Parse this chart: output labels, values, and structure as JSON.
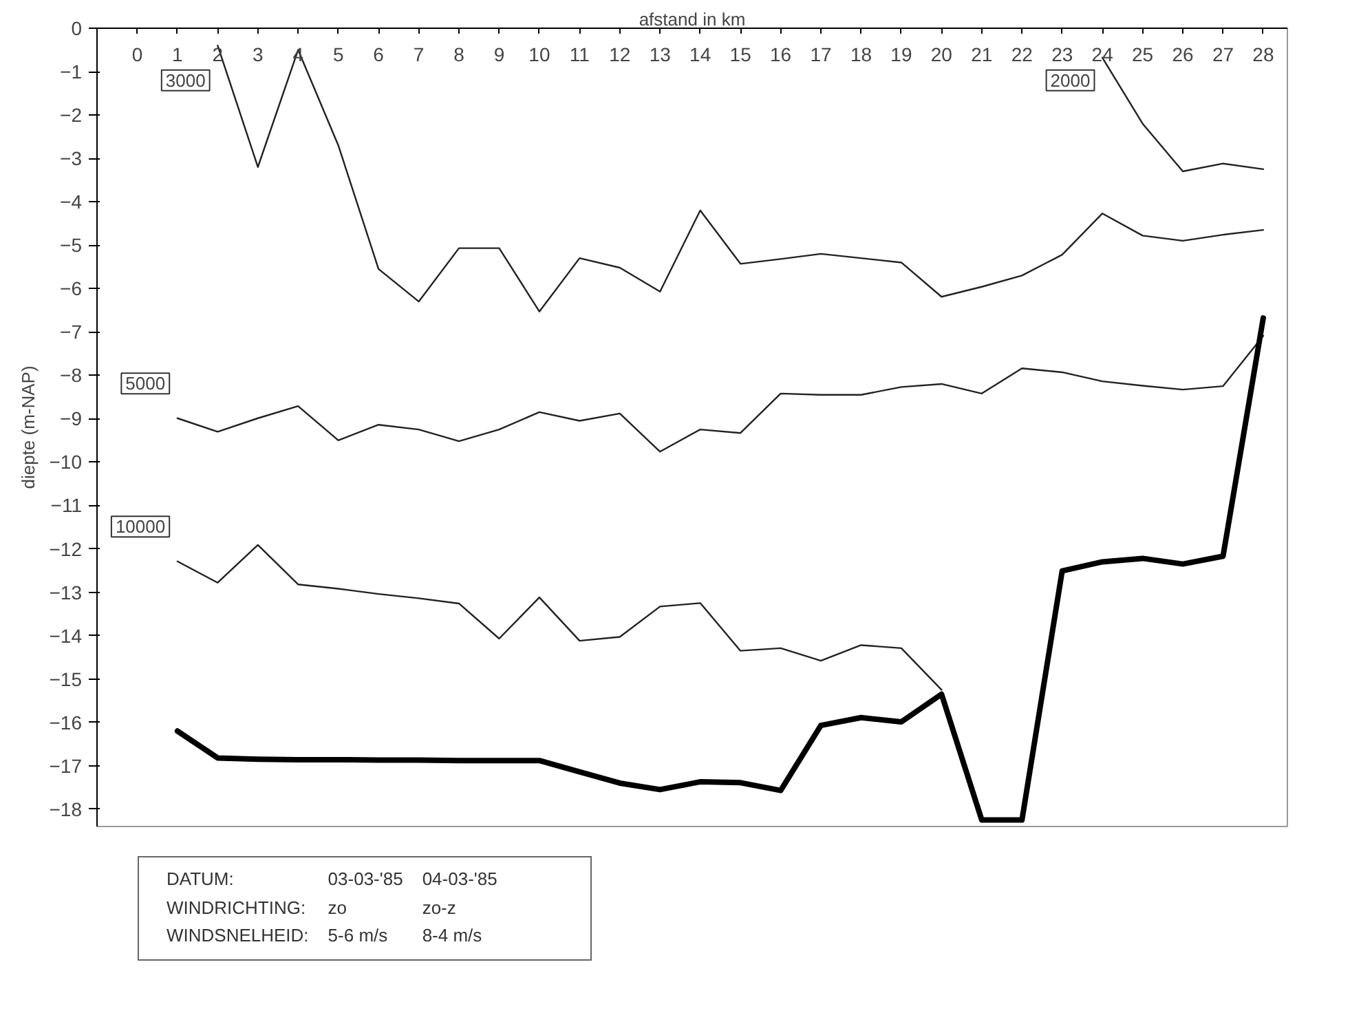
{
  "chart_data": {
    "type": "line",
    "xlabel": "afstand in km",
    "ylabel": "diepte (m-NAP)",
    "x": [
      1,
      2,
      3,
      4,
      5,
      6,
      7,
      8,
      9,
      10,
      11,
      12,
      13,
      14,
      15,
      16,
      17,
      18,
      19,
      20,
      21,
      22,
      23,
      24,
      25,
      26,
      27,
      28
    ],
    "series": [
      {
        "name": "3000",
        "color": "#222222",
        "values": [
          null,
          -0.4,
          -3.2,
          -0.5,
          -2.7,
          -5.55,
          -6.3,
          -5.07,
          -5.07,
          -6.53,
          -5.3,
          -5.52,
          -6.07,
          -4.2,
          -5.43,
          -5.32,
          -5.2,
          -5.3,
          -5.4,
          -6.19,
          -5.96,
          -5.7,
          -5.22,
          -4.27,
          -4.78,
          -4.9,
          -4.76,
          -4.65
        ]
      },
      {
        "name": "2000",
        "color": "#222222",
        "values": [
          null,
          null,
          null,
          null,
          null,
          null,
          null,
          null,
          null,
          null,
          null,
          null,
          null,
          null,
          null,
          null,
          null,
          null,
          null,
          null,
          null,
          null,
          null,
          -0.68,
          -2.2,
          -3.3,
          -3.12,
          -3.25
        ]
      },
      {
        "name": "5000",
        "color": "#222222",
        "values": [
          -8.99,
          -9.3,
          -8.99,
          -8.71,
          -9.5,
          -9.14,
          -9.25,
          -9.52,
          -9.25,
          -8.85,
          -9.05,
          -8.88,
          -9.76,
          -9.25,
          -9.33,
          -8.42,
          -8.45,
          -8.45,
          -8.27,
          -8.2,
          -8.42,
          -7.84,
          -7.93,
          -8.14,
          -8.24,
          -8.33,
          -8.25,
          -7.09
        ]
      },
      {
        "name": "10000",
        "color": "#222222",
        "values": [
          -12.29,
          -12.78,
          -11.91,
          -12.82,
          -12.92,
          -13.04,
          -13.14,
          -13.26,
          -14.07,
          -13.12,
          -14.12,
          -14.03,
          -13.33,
          -13.25,
          -14.35,
          -14.29,
          -14.58,
          -14.22,
          -14.29,
          -15.25,
          null,
          null,
          null,
          null,
          null,
          null,
          null,
          null
        ]
      },
      {
        "color": "#000000",
        "values": [
          -16.2,
          -16.82,
          -16.85,
          -16.86,
          -16.86,
          -16.87,
          -16.87,
          -16.88,
          -16.88,
          -16.88,
          -17.14,
          -17.4,
          -17.55,
          -17.37,
          -17.39,
          -17.57,
          -16.07,
          -15.89,
          -15.99,
          -15.35,
          -18.25,
          -18.25,
          -12.51,
          -12.3,
          -12.22,
          -12.35,
          -12.17,
          -6.68
        ]
      }
    ],
    "xlim": [
      -1,
      28.6
    ],
    "ylim": [
      -18.4,
      0
    ],
    "xticks": [
      0,
      1,
      2,
      3,
      4,
      5,
      6,
      7,
      8,
      9,
      10,
      11,
      12,
      13,
      14,
      15,
      16,
      17,
      18,
      19,
      20,
      21,
      22,
      23,
      24,
      25,
      26,
      27,
      28
    ],
    "yticks": [
      0,
      -1,
      -2,
      -3,
      -4,
      -5,
      -6,
      -7,
      -8,
      -9,
      -10,
      -11,
      -12,
      -13,
      -14,
      -15,
      -16,
      -17,
      -18
    ],
    "grid": false,
    "marker": "none",
    "line_style": "solid",
    "annotations": [
      "DATUM:",
      "03-03-'85",
      "04-03-'85",
      "WINDRICHTING:",
      "zo",
      "zo-z",
      "WINDSNELHEID:",
      "5-6 m/s",
      "8-4  m/s"
    ]
  }
}
